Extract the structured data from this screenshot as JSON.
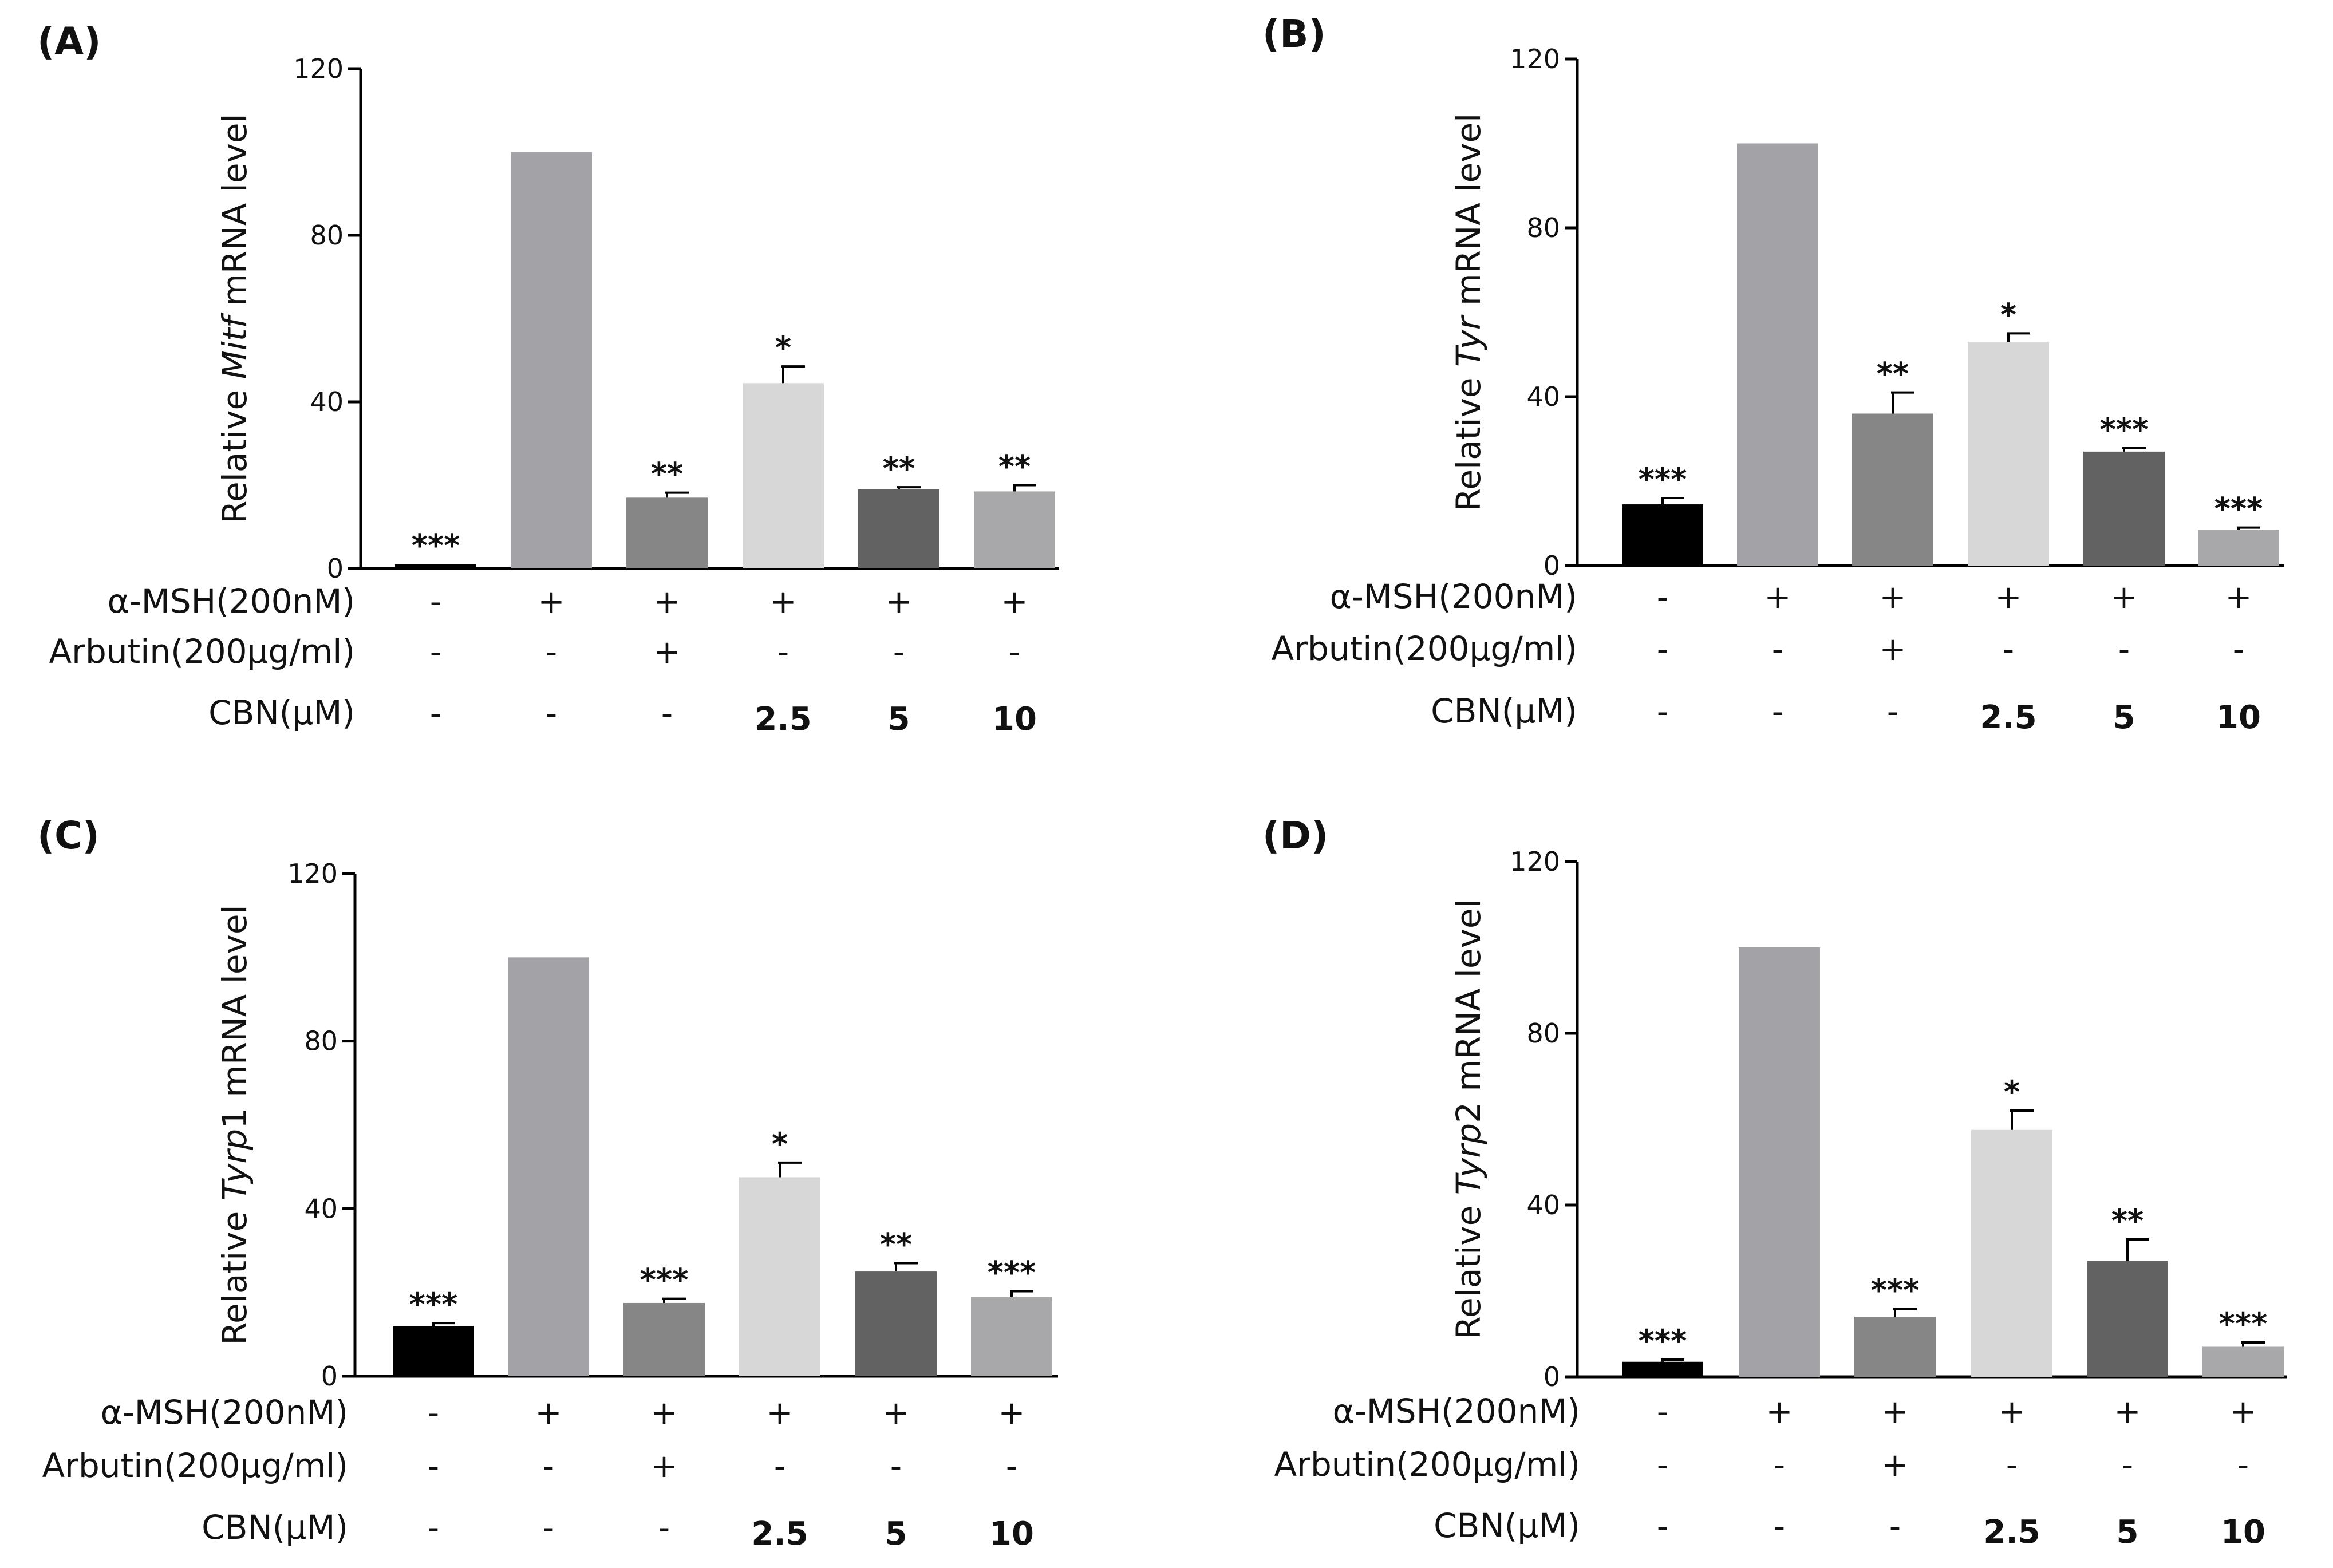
{
  "figure": {
    "conditions": {
      "row_labels": [
        "α-MSH(200nM)",
        "Arbutin(200μg/ml)",
        "CBN(μM)"
      ],
      "values": [
        [
          "-",
          "+",
          "+",
          "+",
          "+",
          "+"
        ],
        [
          "-",
          "-",
          "+",
          "-",
          "-",
          "-"
        ],
        [
          "-",
          "-",
          "-",
          "2.5",
          "5",
          "10"
        ]
      ]
    },
    "colors": {
      "bar_fills": [
        "#000000",
        "#a2a2a7",
        "#868686",
        "#d7d7d7",
        "#626262",
        "#a8a8ab"
      ],
      "axis": "#000000",
      "text": "#111111"
    }
  },
  "chart_data": [
    {
      "panel": "(A)",
      "type": "bar",
      "ylabel_prefix": "Relative ",
      "ylabel_gene": "Mitf",
      "ylabel_suffix": " mRNA level",
      "ylim": [
        0,
        120
      ],
      "yticks": [
        0,
        40,
        80,
        120
      ],
      "values": [
        1,
        100,
        17,
        44.5,
        19,
        18.5
      ],
      "errors": [
        0,
        0,
        1.2,
        4,
        0.5,
        1.5
      ],
      "significance": [
        "***",
        "",
        "**",
        "*",
        "**",
        "**"
      ]
    },
    {
      "panel": "(B)",
      "type": "bar",
      "ylabel_prefix": "Relative ",
      "ylabel_gene": "Tyr",
      "ylabel_suffix": " mRNA level",
      "ylim": [
        0,
        120
      ],
      "yticks": [
        0,
        40,
        80,
        120
      ],
      "values": [
        14.5,
        100,
        36,
        53,
        27,
        8.5
      ],
      "errors": [
        1.5,
        0,
        5,
        2,
        0.8,
        0.5
      ],
      "significance": [
        "***",
        "",
        "**",
        "*",
        "***",
        "***"
      ]
    },
    {
      "panel": "(C)",
      "type": "bar",
      "ylabel_prefix": "Relative ",
      "ylabel_gene": "Tyrp",
      "ylabel_suffix": "1 mRNA level",
      "ylim": [
        0,
        120
      ],
      "yticks": [
        0,
        40,
        80,
        120
      ],
      "values": [
        12,
        100,
        17.5,
        47.5,
        25,
        19
      ],
      "errors": [
        0.7,
        0,
        1,
        3.5,
        2,
        1.3
      ],
      "significance": [
        "***",
        "",
        "***",
        "*",
        "**",
        "***"
      ]
    },
    {
      "panel": "(D)",
      "type": "bar",
      "ylabel_prefix": "Relative ",
      "ylabel_gene": "Tyrp",
      "ylabel_suffix": "2 mRNA level",
      "ylim": [
        0,
        120
      ],
      "yticks": [
        0,
        40,
        80,
        120
      ],
      "values": [
        3.5,
        100,
        14,
        57.5,
        27,
        7
      ],
      "errors": [
        0.5,
        0,
        1.8,
        4.5,
        5,
        1
      ],
      "significance": [
        "***",
        "",
        "***",
        "*",
        "**",
        "***"
      ]
    }
  ]
}
